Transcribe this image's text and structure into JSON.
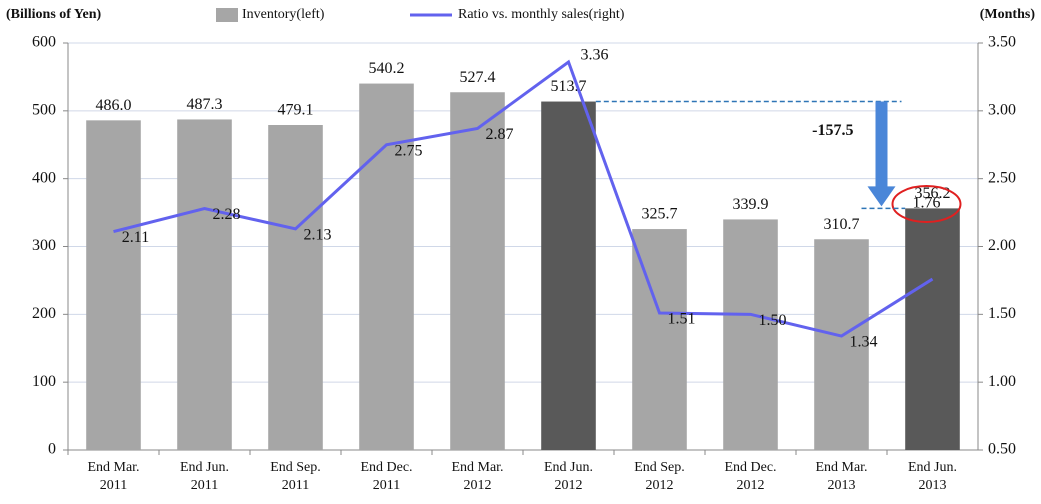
{
  "chart_data": {
    "type": "bar_line",
    "y_axis_label": "(Billions of Yen)",
    "y2_axis_label": "(Months)",
    "categories": [
      [
        "End Mar.",
        "2011"
      ],
      [
        "End Jun.",
        "2011"
      ],
      [
        "End Sep.",
        "2011"
      ],
      [
        "End Dec.",
        "2011"
      ],
      [
        "End Mar.",
        "2012"
      ],
      [
        "End Jun.",
        "2012"
      ],
      [
        "End Sep.",
        "2012"
      ],
      [
        "End Dec.",
        "2012"
      ],
      [
        "End Mar.",
        "2013"
      ],
      [
        "End Jun.",
        "2013"
      ]
    ],
    "series": [
      {
        "name": "Inventory(left)",
        "color": "#a6a6a6",
        "highlight_color": "#595959",
        "highlight": [
          5,
          9
        ],
        "values": [
          486.0,
          487.3,
          479.1,
          540.2,
          527.4,
          513.7,
          325.7,
          339.9,
          310.7,
          356.2
        ],
        "value_labels": [
          "486.0",
          "487.3",
          "479.1",
          "540.2",
          "527.4",
          "513.7",
          "325.7",
          "339.9",
          "310.7",
          "356.2"
        ]
      },
      {
        "name": "Ratio vs. monthly sales(right)",
        "color": "#6262ee",
        "axis": "y2",
        "values": [
          2.11,
          2.28,
          2.13,
          2.75,
          2.87,
          3.36,
          1.51,
          1.5,
          1.34,
          1.76
        ],
        "value_labels": [
          "2.11",
          "2.28",
          "2.13",
          "2.75",
          "2.87",
          "3.36",
          "1.51",
          "1.50",
          "1.34",
          "1.76"
        ]
      }
    ],
    "annotation": "-157.5",
    "ylim": [
      0,
      600
    ],
    "yticks": [
      0,
      100,
      200,
      300,
      400,
      500,
      600
    ],
    "y2lim": [
      0.5,
      3.5
    ],
    "y2ticks": [
      {
        "value": 0.5,
        "label": "0.50"
      },
      {
        "value": 1.0,
        "label": "1.00"
      },
      {
        "value": 1.5,
        "label": "1.50"
      },
      {
        "value": 2.0,
        "label": "2.00"
      },
      {
        "value": 2.5,
        "label": "2.50"
      },
      {
        "value": 3.0,
        "label": "3.00"
      },
      {
        "value": 3.5,
        "label": "3.50"
      }
    ],
    "grid": true
  }
}
